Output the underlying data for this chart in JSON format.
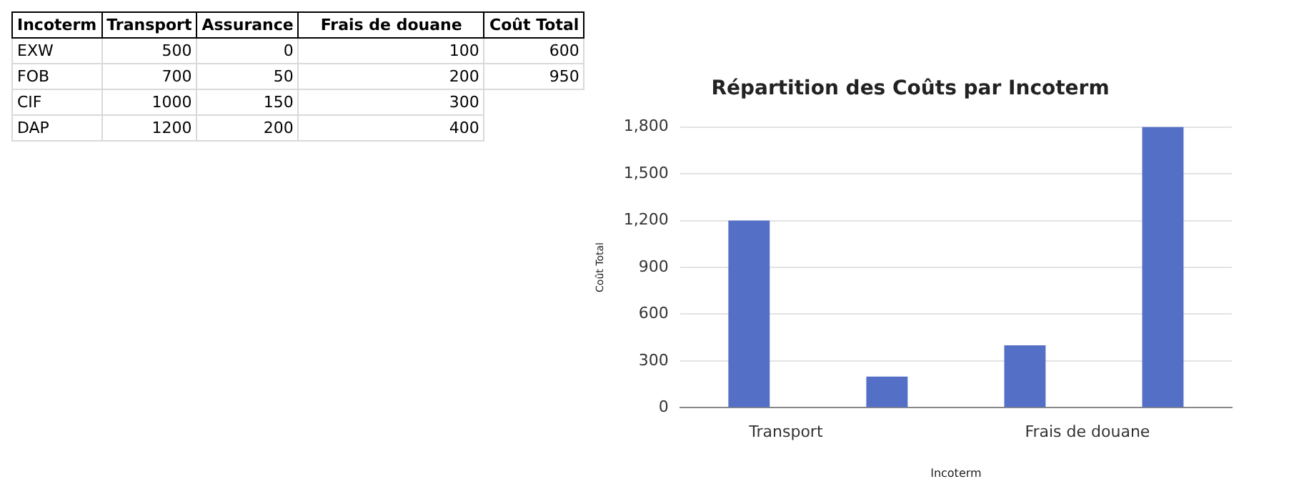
{
  "chart_data": [
    {
      "type": "other",
      "ylabel": "Incoterm",
      "categories": [
        "Transport",
        "Assurance",
        "Frais de douane",
        "Coût Total"
      ],
      "y_categories": [
        "EXW",
        "FOB",
        "CIF",
        "DAP"
      ],
      "cell_labels": [
        [
          "500",
          "0",
          "100",
          "600"
        ],
        [
          "700",
          "50",
          "200",
          "950"
        ],
        [
          "1000",
          "150",
          "300",
          null
        ],
        [
          "1200",
          "200",
          "400",
          null
        ]
      ]
    },
    {
      "type": "bar",
      "title": "Répartition des Coûts par Incoterm",
      "xlabel": "Incoterm",
      "ylabel": "Coût Total",
      "categories": [
        "Transport",
        null,
        "Frais de douane",
        null
      ],
      "values": [
        1200,
        200,
        400,
        1800
      ],
      "color": "#5470c6",
      "ylim": [
        0,
        1800
      ],
      "yticks": [
        0,
        300,
        600,
        900,
        {
          "value": 1200,
          "label": "1,200"
        },
        {
          "value": 1500,
          "label": "1,500"
        },
        {
          "value": 1800,
          "label": "1,800"
        }
      ],
      "grid": "y",
      "legend": false
    }
  ]
}
